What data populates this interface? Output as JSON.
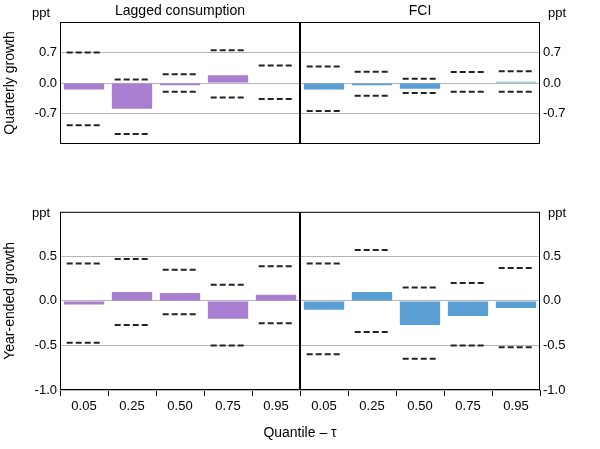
{
  "chart_data": {
    "type": "bar",
    "x_label": "Quantile – τ",
    "panels": [
      {
        "type": "bar",
        "title": "Lagged consumption",
        "y_label": "Quarterly growth",
        "y_unit": "ppt",
        "categories": [
          "0.05",
          "0.25",
          "0.50",
          "0.75",
          "0.95"
        ],
        "values": [
          -0.15,
          -0.59,
          -0.05,
          0.18,
          -0.01
        ],
        "error_bounds": {
          "upper": [
            0.7,
            0.08,
            0.2,
            0.75,
            0.4
          ],
          "lower": [
            -0.97,
            -1.17,
            -0.2,
            -0.33,
            -0.37
          ]
        },
        "color": "#a87fd1",
        "ylim": [
          -1.4,
          1.4
        ],
        "yticks": [
          -0.7,
          {
            "value": 0,
            "label": "0.0"
          },
          0.7
        ],
        "grid": true,
        "tick_labels": "y"
      },
      {
        "type": "bar",
        "title": "FCI",
        "y_unit": "ppt",
        "categories": [
          "0.05",
          "0.25",
          "0.50",
          "0.75",
          "0.95"
        ],
        "values": [
          -0.15,
          -0.05,
          -0.13,
          0.01,
          0.03
        ],
        "error_bounds": {
          "upper": [
            0.38,
            0.26,
            0.1,
            0.25,
            0.27
          ],
          "lower": [
            -0.64,
            -0.29,
            -0.23,
            -0.2,
            -0.2
          ]
        },
        "color": "#5a9fd4",
        "ylim": [
          -1.4,
          1.4
        ],
        "yticks": [
          -0.7,
          {
            "value": 0,
            "label": "0.0"
          },
          0.7
        ],
        "grid": true,
        "tick_labels": "y"
      },
      {
        "type": "bar",
        "y_label": "Year-ended growth",
        "y_unit": "ppt",
        "categories": [
          "0.05",
          "0.25",
          "0.50",
          "0.75",
          "0.95"
        ],
        "values": [
          -0.04,
          0.1,
          0.09,
          -0.2,
          0.07
        ],
        "error_bounds": {
          "upper": [
            0.42,
            0.47,
            0.35,
            0.18,
            0.39
          ],
          "lower": [
            -0.47,
            -0.27,
            -0.15,
            -0.5,
            -0.25
          ]
        },
        "color": "#a87fd1",
        "ylim": [
          -1.0,
          1.0
        ],
        "yticks": [
          {
            "value": -1,
            "label": "-1.0"
          },
          -0.5,
          {
            "value": 0,
            "label": "0.0"
          },
          0.5
        ],
        "grid": true
      },
      {
        "type": "bar",
        "y_unit": "ppt",
        "categories": [
          "0.05",
          "0.25",
          "0.50",
          "0.75",
          "0.95"
        ],
        "values": [
          -0.1,
          0.1,
          -0.27,
          -0.17,
          -0.08
        ],
        "error_bounds": {
          "upper": [
            0.42,
            0.57,
            0.15,
            0.2,
            0.37
          ],
          "lower": [
            -0.6,
            -0.35,
            -0.65,
            -0.5,
            -0.52
          ]
        },
        "color": "#5a9fd4",
        "ylim": [
          -1.0,
          1.0
        ],
        "yticks": [
          {
            "value": -1,
            "label": "-1.0"
          },
          -0.5,
          {
            "value": 0,
            "label": "0.0"
          },
          0.5
        ],
        "grid": true
      }
    ]
  }
}
